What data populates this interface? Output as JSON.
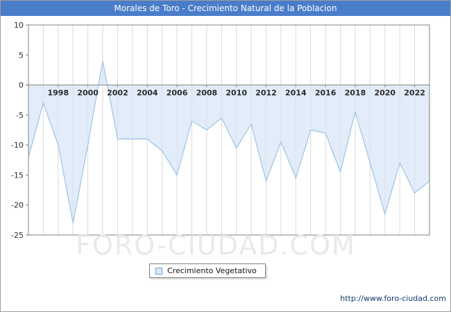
{
  "title_bar": {
    "text": "Morales de Toro - Crecimiento Natural de la Poblacion",
    "bg_color": "#4a7dc9",
    "fg_color": "#ffffff"
  },
  "watermark": "FORO-CIUDAD.COM",
  "legend": {
    "label": "Crecimiento Vegetativo",
    "swatch_color": "#dce9f8",
    "swatch_border": "#6f9fd0"
  },
  "footer": {
    "url": "http://www.foro-ciudad.com"
  },
  "chart_data": {
    "type": "area",
    "title": "Morales de Toro - Crecimiento Natural de la Poblacion",
    "xlabel": "",
    "ylabel": "",
    "x": [
      1996,
      1997,
      1998,
      1999,
      2000,
      2001,
      2002,
      2003,
      2004,
      2005,
      2006,
      2007,
      2008,
      2009,
      2010,
      2011,
      2012,
      2013,
      2014,
      2015,
      2016,
      2017,
      2018,
      2019,
      2020,
      2021,
      2022,
      2023
    ],
    "series": [
      {
        "name": "Crecimiento Vegetativo",
        "values": [
          -12,
          -3,
          -10,
          -23,
          -10,
          4,
          -9,
          -9,
          -9,
          -11,
          -15,
          -6,
          -7.5,
          -5.5,
          -10.5,
          -6.5,
          -16,
          -9.5,
          -15.5,
          -7.5,
          -8,
          -14.5,
          -4.5,
          -13,
          -21.5,
          -13,
          -18,
          -16
        ]
      }
    ],
    "ylim": [
      -25,
      10
    ],
    "yticks": [
      10,
      5,
      0,
      -5,
      -10,
      -15,
      -20,
      -25
    ],
    "xticks": [
      1998,
      2000,
      2002,
      2004,
      2006,
      2008,
      2010,
      2012,
      2014,
      2016,
      2018,
      2020,
      2022
    ],
    "baseline": 0,
    "grid": "vertical-per-year",
    "gridline_color": "#d9d9d9",
    "axis_color": "#808080",
    "line_color": "#9cc3e6",
    "fill_color": "#d6e6f7",
    "legend_position": "bottom"
  }
}
